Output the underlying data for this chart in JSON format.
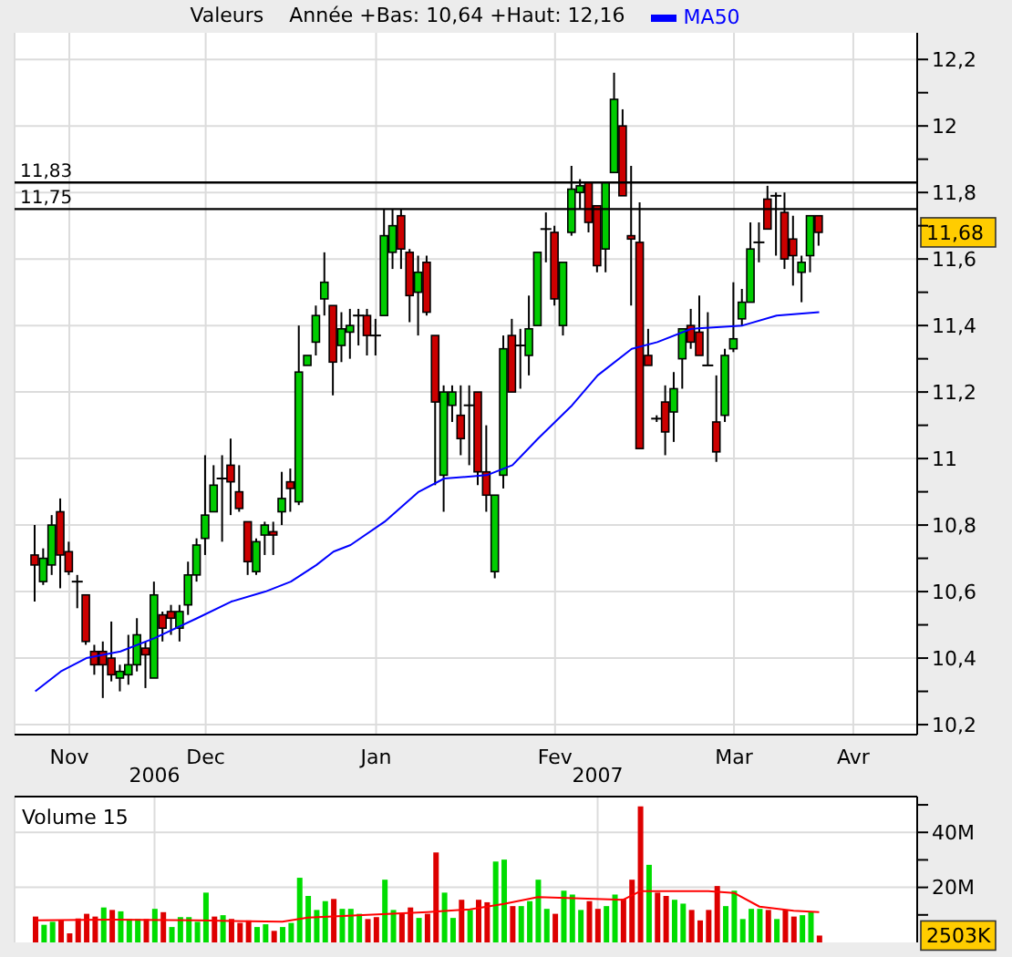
{
  "chart_data": [
    {
      "type": "candlestick",
      "legend_title": "Valeurs",
      "legend": "top",
      "grid": true,
      "annotations": [
        "Année +Bas: 10,64 +Haut: 12,16",
        {
          "text": "11,68",
          "y": 11.68
        }
      ],
      "categories": [
        null,
        null,
        null,
        null,
        "Nov",
        null,
        null,
        null,
        null,
        null,
        null,
        null,
        null,
        null,
        null,
        null,
        null,
        null,
        null,
        null,
        "Dec",
        null,
        null,
        null,
        null,
        null,
        null,
        null,
        null,
        null,
        null,
        null,
        null,
        null,
        null,
        null,
        null,
        null,
        null,
        null,
        "Jan",
        null,
        null,
        null,
        null,
        null,
        null,
        null,
        null,
        null,
        null,
        null,
        null,
        null,
        null,
        null,
        null,
        null,
        null,
        null,
        null,
        "Fev",
        null,
        null,
        null,
        null,
        null,
        null,
        null,
        null,
        null,
        null,
        null,
        null,
        null,
        null,
        null,
        null,
        null,
        null,
        null,
        null,
        "Mar",
        null,
        null,
        null,
        null,
        null,
        null,
        null,
        null,
        null,
        null,
        null,
        null,
        null,
        "Avr",
        null,
        null,
        null,
        null,
        null,
        null,
        null
      ],
      "ohlc": [
        [
          10.71,
          10.8,
          10.57,
          10.68
        ],
        [
          10.63,
          10.73,
          10.62,
          10.7
        ],
        [
          10.68,
          10.83,
          10.65,
          10.8
        ],
        [
          10.84,
          10.88,
          10.61,
          10.71
        ],
        [
          10.72,
          10.75,
          10.65,
          10.66
        ],
        [
          10.63,
          10.65,
          10.55,
          10.63
        ],
        [
          10.59,
          10.59,
          10.44,
          10.45
        ],
        [
          10.42,
          10.44,
          10.35,
          10.38
        ],
        [
          10.42,
          10.45,
          10.28,
          10.38
        ],
        [
          10.4,
          10.51,
          10.33,
          10.35
        ],
        [
          10.34,
          10.38,
          10.3,
          10.36
        ],
        [
          10.35,
          10.47,
          10.32,
          10.38
        ],
        [
          10.38,
          10.52,
          10.36,
          10.47
        ],
        [
          10.43,
          10.45,
          10.31,
          10.41
        ],
        [
          10.34,
          10.63,
          10.34,
          10.59
        ],
        [
          10.53,
          10.54,
          10.45,
          10.49
        ],
        [
          10.54,
          10.56,
          10.47,
          10.52
        ],
        [
          10.49,
          10.56,
          10.45,
          10.54
        ],
        [
          10.56,
          10.69,
          10.53,
          10.65
        ],
        [
          10.65,
          10.76,
          10.63,
          10.74
        ],
        [
          10.76,
          11.01,
          10.71,
          10.83
        ],
        [
          10.84,
          10.98,
          10.84,
          10.92
        ],
        [
          10.94,
          11.01,
          10.75,
          10.94
        ],
        [
          10.98,
          11.06,
          10.83,
          10.93
        ],
        [
          10.9,
          10.98,
          10.84,
          10.85
        ],
        [
          10.81,
          10.81,
          10.65,
          10.69
        ],
        [
          10.66,
          10.76,
          10.65,
          10.75
        ],
        [
          10.77,
          10.81,
          10.71,
          10.8
        ],
        [
          10.78,
          10.81,
          10.71,
          10.77
        ],
        [
          10.84,
          10.96,
          10.8,
          10.88
        ],
        [
          10.93,
          10.97,
          10.84,
          10.91
        ],
        [
          10.87,
          11.4,
          10.86,
          11.26
        ],
        [
          11.28,
          11.31,
          11.28,
          11.31
        ],
        [
          11.35,
          11.46,
          11.31,
          11.43
        ],
        [
          11.48,
          11.62,
          11.43,
          11.53
        ],
        [
          11.46,
          11.46,
          11.19,
          11.29
        ],
        [
          11.34,
          11.44,
          11.29,
          11.39
        ],
        [
          11.38,
          11.45,
          11.3,
          11.4
        ],
        [
          11.43,
          11.45,
          11.34,
          11.43
        ],
        [
          11.43,
          11.45,
          11.31,
          11.37
        ],
        [
          11.37,
          11.42,
          11.31,
          11.37
        ],
        [
          11.43,
          11.75,
          11.43,
          11.67
        ],
        [
          11.62,
          11.75,
          11.57,
          11.7
        ],
        [
          11.73,
          11.75,
          11.57,
          11.63
        ],
        [
          11.62,
          11.63,
          11.41,
          11.49
        ],
        [
          11.5,
          11.61,
          11.37,
          11.56
        ],
        [
          11.59,
          11.61,
          11.43,
          11.44
        ],
        [
          11.37,
          11.37,
          10.92,
          11.17
        ],
        [
          10.95,
          11.22,
          10.84,
          11.2
        ],
        [
          11.16,
          11.22,
          11.11,
          11.2
        ],
        [
          11.13,
          11.22,
          11.01,
          11.06
        ],
        [
          11.16,
          11.22,
          10.98,
          11.16
        ],
        [
          11.2,
          11.2,
          10.92,
          10.96
        ],
        [
          10.96,
          11.1,
          10.84,
          10.89
        ],
        [
          10.66,
          10.89,
          10.64,
          10.89
        ],
        [
          10.95,
          11.37,
          10.91,
          11.33
        ],
        [
          11.37,
          11.42,
          11.2,
          11.2
        ],
        [
          11.34,
          11.39,
          11.21,
          11.34
        ],
        [
          11.31,
          11.49,
          11.25,
          11.39
        ],
        [
          11.4,
          11.62,
          11.4,
          11.62
        ],
        [
          11.69,
          11.74,
          11.59,
          11.69
        ],
        [
          11.68,
          11.7,
          11.46,
          11.48
        ],
        [
          11.4,
          11.59,
          11.37,
          11.59
        ],
        [
          11.68,
          11.88,
          11.67,
          11.81
        ],
        [
          11.8,
          11.84,
          11.75,
          11.82
        ],
        [
          11.83,
          11.83,
          11.68,
          11.71
        ],
        [
          11.76,
          11.76,
          11.56,
          11.58
        ],
        [
          11.63,
          11.83,
          11.56,
          11.83
        ],
        [
          11.86,
          12.16,
          11.86,
          12.08
        ],
        [
          12,
          12.05,
          11.79,
          11.79
        ],
        [
          11.67,
          11.88,
          11.46,
          11.66
        ],
        [
          11.65,
          11.77,
          11.03,
          11.03
        ],
        [
          11.31,
          11.39,
          11.28,
          11.28
        ],
        [
          11.12,
          11.13,
          11.11,
          11.12
        ],
        [
          11.17,
          11.22,
          11.01,
          11.08
        ],
        [
          11.14,
          11.26,
          11.05,
          11.21
        ],
        [
          11.3,
          11.39,
          11.21,
          11.39
        ],
        [
          11.4,
          11.45,
          11.33,
          11.35
        ],
        [
          11.38,
          11.49,
          11.31,
          11.31
        ],
        [
          11.28,
          11.44,
          11.28,
          11.28
        ],
        [
          11.11,
          11.25,
          10.99,
          11.02
        ],
        [
          11.13,
          11.33,
          11.11,
          11.31
        ],
        [
          11.33,
          11.53,
          11.32,
          11.36
        ],
        [
          11.42,
          11.51,
          11.4,
          11.47
        ],
        [
          11.47,
          11.71,
          11.47,
          11.63
        ],
        [
          11.65,
          11.71,
          11.59,
          11.65
        ],
        [
          11.78,
          11.82,
          11.69,
          11.69
        ],
        [
          11.79,
          11.8,
          11.61,
          11.79
        ],
        [
          11.74,
          11.8,
          11.57,
          11.6
        ],
        [
          11.66,
          11.73,
          11.52,
          11.61
        ],
        [
          11.56,
          11.61,
          11.47,
          11.59
        ],
        [
          11.61,
          11.73,
          11.56,
          11.73
        ],
        [
          11.73,
          11.73,
          11.64,
          11.68
        ],
        null,
        null,
        null,
        null,
        null,
        null,
        null,
        null,
        null,
        null,
        null
      ],
      "colors": [
        "#cc0000",
        "#00cc00",
        "#00cc00",
        "#cc0000",
        "#cc0000",
        "#000000",
        "#cc0000",
        "#cc0000",
        "#cc0000",
        "#cc0000",
        "#00cc00",
        "#00cc00",
        "#00cc00",
        "#cc0000",
        "#00cc00",
        "#cc0000",
        "#cc0000",
        "#00cc00",
        "#00cc00",
        "#00cc00",
        "#00cc00",
        "#00cc00",
        "#000000",
        "#cc0000",
        "#cc0000",
        "#cc0000",
        "#00cc00",
        "#00cc00",
        "#cc0000",
        "#00cc00",
        "#cc0000",
        "#00cc00",
        "#00cc00",
        "#00cc00",
        "#00cc00",
        "#cc0000",
        "#00cc00",
        "#00cc00",
        "#000000",
        "#cc0000",
        "#000000",
        "#00cc00",
        "#00cc00",
        "#cc0000",
        "#cc0000",
        "#00cc00",
        "#cc0000",
        "#cc0000",
        "#00cc00",
        "#00cc00",
        "#cc0000",
        "#000000",
        "#cc0000",
        "#cc0000",
        "#00cc00",
        "#00cc00",
        "#cc0000",
        "#000000",
        "#00cc00",
        "#00cc00",
        "#000000",
        "#cc0000",
        "#00cc00",
        "#00cc00",
        "#00cc00",
        "#cc0000",
        "#cc0000",
        "#00cc00",
        "#00cc00",
        "#cc0000",
        "#cc0000",
        "#cc0000",
        "#cc0000",
        "#000000",
        "#cc0000",
        "#00cc00",
        "#00cc00",
        "#cc0000",
        "#cc0000",
        "#000000",
        "#cc0000",
        "#00cc00",
        "#00cc00",
        "#00cc00",
        "#00cc00",
        "#000000",
        "#cc0000",
        "#000000",
        "#cc0000",
        "#cc0000",
        "#00cc00",
        "#00cc00",
        "#cc0000",
        null,
        null,
        null,
        null,
        null,
        null,
        null,
        null,
        null,
        null,
        null
      ],
      "series": [
        {
          "type": "line",
          "name": "MA50",
          "color": "#0000ff",
          "values": [
            10.3,
            null,
            null,
            10.36,
            null,
            null,
            10.4,
            null,
            null,
            null,
            10.42,
            null,
            null,
            null,
            10.46,
            null,
            null,
            null,
            null,
            10.52,
            null,
            null,
            null,
            10.57,
            null,
            null,
            null,
            10.6,
            null,
            null,
            10.63,
            null,
            null,
            10.68,
            null,
            10.72,
            null,
            10.74,
            null,
            null,
            null,
            10.81,
            null,
            null,
            null,
            10.9,
            null,
            null,
            10.94,
            null,
            null,
            null,
            null,
            10.95,
            null,
            null,
            10.98,
            null,
            null,
            11.06,
            null,
            null,
            null,
            11.16,
            null,
            null,
            11.25,
            null,
            null,
            null,
            11.33,
            null,
            null,
            11.35,
            null,
            null,
            null,
            11.39,
            null,
            null,
            null,
            null,
            null,
            11.4,
            null,
            null,
            null,
            11.43,
            null,
            null,
            null,
            null,
            11.44,
            null,
            null,
            null,
            null,
            null,
            null,
            null,
            null,
            null,
            null,
            null
          ]
        }
      ],
      "ylim": [
        10.17,
        12.28
      ],
      "yticks": [
        {
          "value": 10.2,
          "label": "10,2"
        },
        {
          "value": 10.3,
          "label": null
        },
        {
          "value": 10.4,
          "label": "10,4"
        },
        {
          "value": 10.5,
          "label": null
        },
        {
          "value": 10.6,
          "label": "10,6"
        },
        {
          "value": 10.7,
          "label": null
        },
        {
          "value": 10.8,
          "label": "10,8"
        },
        {
          "value": 10.9,
          "label": null
        },
        11,
        {
          "value": 11.1,
          "label": null
        },
        {
          "value": 11.2,
          "label": "11,2"
        },
        {
          "value": 11.3,
          "label": null
        },
        {
          "value": 11.4,
          "label": "11,4"
        },
        {
          "value": 11.5,
          "label": null
        },
        {
          "value": 11.6,
          "label": "11,6"
        },
        {
          "value": 11.7,
          "label": null
        },
        {
          "value": 11.8,
          "label": "11,8"
        },
        {
          "value": 11.9,
          "label": null
        },
        12,
        {
          "value": 12.1,
          "label": null
        },
        {
          "value": 12.2,
          "label": "12,2"
        }
      ],
      "ref_lines": [
        {
          "axis": "y",
          "value": 11.83,
          "label": "11,83",
          "color": "#000000"
        },
        {
          "axis": "y",
          "value": 11.75,
          "label": "11,75",
          "color": "#000000"
        }
      ]
    },
    {
      "type": "bar",
      "title": "Volume 15",
      "grid": true,
      "annotations": [
        {
          "text": "2503K",
          "y": 2.5
        }
      ],
      "categories": [
        null,
        null,
        null,
        null,
        null,
        null,
        null,
        null,
        null,
        null,
        null,
        null,
        null,
        null,
        "2006",
        null,
        null,
        null,
        null,
        null,
        null,
        null,
        null,
        null,
        null,
        null,
        null,
        null,
        null,
        null,
        null,
        null,
        null,
        null,
        null,
        null,
        null,
        null,
        null,
        null,
        null,
        null,
        null,
        null,
        null,
        null,
        null,
        null,
        null,
        null,
        null,
        null,
        null,
        null,
        null,
        null,
        null,
        null,
        null,
        null,
        null,
        null,
        null,
        null,
        null,
        null,
        "2007",
        null,
        null,
        null,
        null,
        null,
        null,
        null,
        null,
        null,
        null,
        null,
        null,
        null,
        null,
        null,
        null,
        null,
        null,
        null,
        null,
        null,
        null,
        null,
        null,
        null,
        null,
        null,
        null,
        null,
        null,
        null,
        null,
        null,
        null,
        null,
        null,
        null
      ],
      "series": [
        {
          "type": "bar",
          "colors": [
            "#dd0000",
            "#00dd00",
            "#00dd00",
            "#dd0000",
            "#dd0000",
            "#dd0000",
            "#dd0000",
            "#dd0000",
            "#00dd00",
            "#dd0000",
            "#00dd00",
            "#00dd00",
            "#00dd00",
            "#dd0000",
            "#00dd00",
            "#dd0000",
            "#00dd00",
            "#00dd00",
            "#00dd00",
            "#00dd00",
            "#00dd00",
            "#dd0000",
            "#00dd00",
            "#dd0000",
            "#dd0000",
            "#dd0000",
            "#00dd00",
            "#00dd00",
            "#dd0000",
            "#00dd00",
            "#00dd00",
            "#00dd00",
            "#00dd00",
            "#00dd00",
            "#00dd00",
            "#dd0000",
            "#00dd00",
            "#00dd00",
            "#00dd00",
            "#dd0000",
            "#dd0000",
            "#00dd00",
            "#00dd00",
            "#dd0000",
            "#dd0000",
            "#00dd00",
            "#dd0000",
            "#dd0000",
            "#00dd00",
            "#00dd00",
            "#dd0000",
            "#00dd00",
            "#dd0000",
            "#dd0000",
            "#00dd00",
            "#00dd00",
            "#dd0000",
            "#00dd00",
            "#00dd00",
            "#00dd00",
            "#00dd00",
            "#dd0000",
            "#00dd00",
            "#00dd00",
            "#00dd00",
            "#dd0000",
            "#dd0000",
            "#00dd00",
            "#00dd00",
            "#dd0000",
            "#dd0000",
            "#dd0000",
            "#00dd00",
            "#dd0000",
            "#dd0000",
            "#00dd00",
            "#00dd00",
            "#dd0000",
            "#dd0000",
            "#dd0000",
            "#dd0000",
            "#00dd00",
            "#00dd00",
            "#00dd00",
            "#00dd00",
            "#00dd00",
            "#dd0000",
            "#00dd00",
            "#dd0000",
            "#dd0000",
            "#00dd00",
            "#00dd00",
            "#dd0000",
            null,
            null,
            null,
            null,
            null,
            null,
            null,
            null,
            null,
            null,
            null
          ],
          "values": [
            9.4,
            6.4,
            7.5,
            8,
            3.3,
            8.7,
            10.4,
            9.4,
            12.7,
            11.8,
            11.3,
            8.5,
            8.5,
            8.5,
            12.2,
            11,
            5.6,
            9.2,
            9.2,
            7.5,
            18.1,
            9.4,
            9.9,
            8.5,
            7.1,
            8,
            5.6,
            6.6,
            4.2,
            5.6,
            7.1,
            23.5,
            16.9,
            11.8,
            15,
            15.8,
            12.2,
            12.2,
            10.4,
            8.5,
            9.2,
            22.8,
            11.8,
            10.4,
            12.7,
            8.9,
            10.4,
            32.7,
            18.1,
            8.9,
            15.5,
            11.8,
            15.5,
            14.6,
            29.4,
            30.1,
            13.2,
            13.2,
            15,
            22.8,
            12.2,
            10.4,
            18.8,
            17.4,
            11.8,
            15,
            12.2,
            13.2,
            17.4,
            15.8,
            22.8,
            49.4,
            28.2,
            18.1,
            16.9,
            15.5,
            14.1,
            11.8,
            8,
            11.8,
            20.5,
            13.2,
            18.8,
            8.5,
            12.2,
            12.2,
            11.8,
            8.5,
            11.8,
            9.4,
            9.9,
            11,
            2.5,
            null,
            null,
            null,
            null,
            null,
            null,
            null,
            null,
            null,
            null,
            null
          ]
        },
        {
          "type": "line",
          "color": "#ff0000",
          "values": [
            8,
            null,
            null,
            null,
            null,
            null,
            null,
            null,
            null,
            8.3,
            null,
            null,
            null,
            null,
            null,
            null,
            null,
            null,
            null,
            8,
            null,
            null,
            null,
            null,
            null,
            null,
            null,
            null,
            null,
            7.5,
            null,
            null,
            9,
            null,
            null,
            null,
            null,
            null,
            null,
            10,
            null,
            null,
            null,
            null,
            null,
            null,
            11,
            null,
            null,
            null,
            null,
            12,
            null,
            null,
            null,
            14,
            null,
            null,
            null,
            16.5,
            null,
            null,
            null,
            null,
            16,
            null,
            null,
            null,
            null,
            15.5,
            null,
            18.6,
            null,
            null,
            null,
            null,
            null,
            null,
            null,
            18.6,
            null,
            null,
            18,
            null,
            null,
            13,
            null,
            null,
            null,
            11.5,
            null,
            null,
            11,
            null,
            null,
            null,
            null,
            null,
            null,
            null,
            null,
            null,
            null,
            null
          ]
        }
      ],
      "ylim": [
        0,
        53
      ],
      "yticks": [
        {
          "value": 10,
          "label": null
        },
        {
          "value": 20,
          "label": "20M"
        },
        {
          "value": 30,
          "label": null
        },
        {
          "value": 40,
          "label": "40M"
        },
        {
          "value": 50,
          "label": null
        }
      ]
    }
  ]
}
